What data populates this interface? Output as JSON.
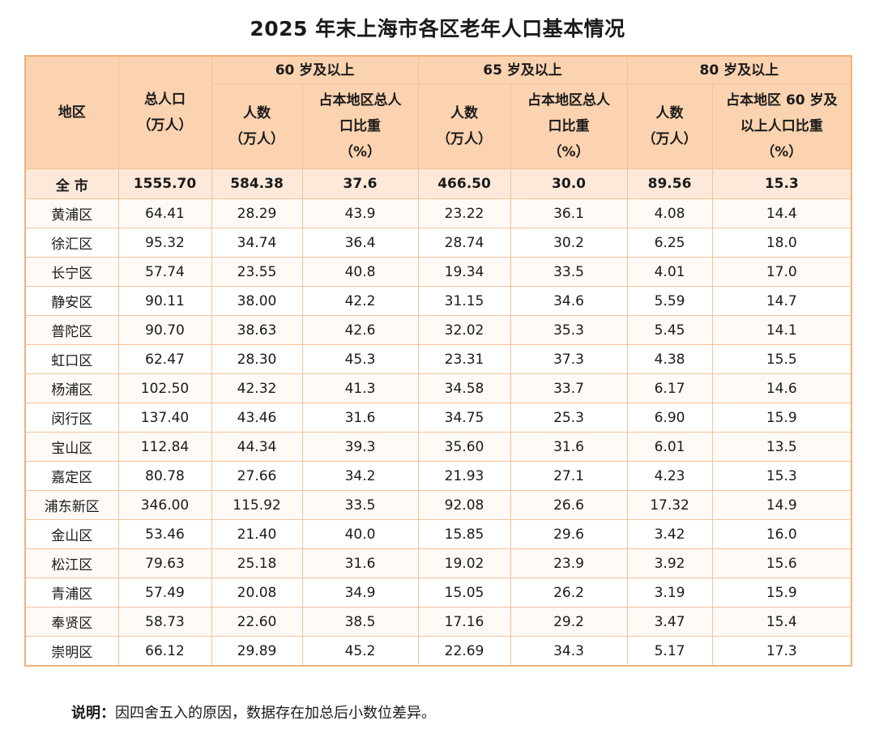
{
  "title": "2025 年末上海市各区老年人口基本情况",
  "header": {
    "region": "地区",
    "total_pop": [
      "总人口",
      "（万人）"
    ],
    "group60": "60 岁及以上",
    "group65": "65 岁及以上",
    "group80": "80 岁及以上",
    "count": [
      "人数",
      "（万人）"
    ],
    "share_total": [
      "占本地区总人",
      "口比重",
      "（%）"
    ],
    "share_60": [
      "占本地区 60 岁及",
      "以上人口比重",
      "（%）"
    ]
  },
  "rows": [
    {
      "name": "全 市",
      "total": "1555.70",
      "p60": "584.38",
      "s60": "37.6",
      "p65": "466.50",
      "s65": "30.0",
      "p80": "89.56",
      "s80": "15.3"
    },
    {
      "name": "黄浦区",
      "total": "64.41",
      "p60": "28.29",
      "s60": "43.9",
      "p65": "23.22",
      "s65": "36.1",
      "p80": "4.08",
      "s80": "14.4"
    },
    {
      "name": "徐汇区",
      "total": "95.32",
      "p60": "34.74",
      "s60": "36.4",
      "p65": "28.74",
      "s65": "30.2",
      "p80": "6.25",
      "s80": "18.0"
    },
    {
      "name": "长宁区",
      "total": "57.74",
      "p60": "23.55",
      "s60": "40.8",
      "p65": "19.34",
      "s65": "33.5",
      "p80": "4.01",
      "s80": "17.0"
    },
    {
      "name": "静安区",
      "total": "90.11",
      "p60": "38.00",
      "s60": "42.2",
      "p65": "31.15",
      "s65": "34.6",
      "p80": "5.59",
      "s80": "14.7"
    },
    {
      "name": "普陀区",
      "total": "90.70",
      "p60": "38.63",
      "s60": "42.6",
      "p65": "32.02",
      "s65": "35.3",
      "p80": "5.45",
      "s80": "14.1"
    },
    {
      "name": "虹口区",
      "total": "62.47",
      "p60": "28.30",
      "s60": "45.3",
      "p65": "23.31",
      "s65": "37.3",
      "p80": "4.38",
      "s80": "15.5"
    },
    {
      "name": "杨浦区",
      "total": "102.50",
      "p60": "42.32",
      "s60": "41.3",
      "p65": "34.58",
      "s65": "33.7",
      "p80": "6.17",
      "s80": "14.6"
    },
    {
      "name": "闵行区",
      "total": "137.40",
      "p60": "43.46",
      "s60": "31.6",
      "p65": "34.75",
      "s65": "25.3",
      "p80": "6.90",
      "s80": "15.9"
    },
    {
      "name": "宝山区",
      "total": "112.84",
      "p60": "44.34",
      "s60": "39.3",
      "p65": "35.60",
      "s65": "31.6",
      "p80": "6.01",
      "s80": "13.5"
    },
    {
      "name": "嘉定区",
      "total": "80.78",
      "p60": "27.66",
      "s60": "34.2",
      "p65": "21.93",
      "s65": "27.1",
      "p80": "4.23",
      "s80": "15.3"
    },
    {
      "name": "浦东新区",
      "total": "346.00",
      "p60": "115.92",
      "s60": "33.5",
      "p65": "92.08",
      "s65": "26.6",
      "p80": "17.32",
      "s80": "14.9"
    },
    {
      "name": "金山区",
      "total": "53.46",
      "p60": "21.40",
      "s60": "40.0",
      "p65": "15.85",
      "s65": "29.6",
      "p80": "3.42",
      "s80": "16.0"
    },
    {
      "name": "松江区",
      "total": "79.63",
      "p60": "25.18",
      "s60": "31.6",
      "p65": "19.02",
      "s65": "23.9",
      "p80": "3.92",
      "s80": "15.6"
    },
    {
      "name": "青浦区",
      "total": "57.49",
      "p60": "20.08",
      "s60": "34.9",
      "p65": "15.05",
      "s65": "26.2",
      "p80": "3.19",
      "s80": "15.9"
    },
    {
      "name": "奉贤区",
      "total": "58.73",
      "p60": "22.60",
      "s60": "38.5",
      "p65": "17.16",
      "s65": "29.2",
      "p80": "3.47",
      "s80": "15.4"
    },
    {
      "name": "崇明区",
      "total": "66.12",
      "p60": "29.89",
      "s60": "45.2",
      "p65": "22.69",
      "s65": "34.3",
      "p80": "5.17",
      "s80": "17.3"
    }
  ],
  "note": {
    "label": "说明：",
    "text": "因四舍五入的原因，数据存在加总后小数位差异。"
  },
  "colors": {
    "header_bg": "#fbd3b0",
    "border": "#f1b27d",
    "total_row_bg": "#fde9da"
  }
}
